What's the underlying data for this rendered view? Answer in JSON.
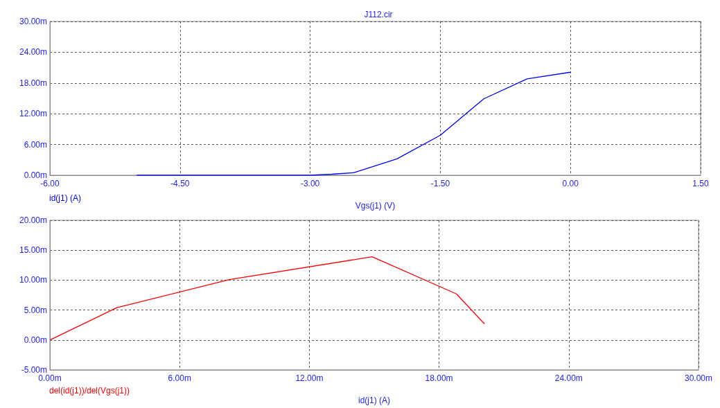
{
  "chart_data": [
    {
      "type": "line",
      "title": "J112.cir",
      "xlabel": "Vgs(j1) (V)",
      "x": [
        -5,
        -3,
        -2.75,
        -2.5,
        -2,
        -1.5,
        -1,
        -0.5,
        0
      ],
      "series": [
        {
          "name": "id(j1) (A)",
          "color": "#0000ff",
          "values": [
            0,
            0,
            0.2,
            0.5,
            3.2,
            7.8,
            14.9,
            18.8,
            20.1
          ]
        }
      ],
      "xlim": [
        -6,
        1.5
      ],
      "xticks": [
        {
          "value": -6,
          "label": "-6.00"
        },
        {
          "value": -4.5,
          "label": "-4.50"
        },
        {
          "value": -3,
          "label": "-3.00"
        },
        {
          "value": -1.5,
          "label": "-1.50"
        },
        {
          "value": 0,
          "label": "0.00"
        },
        {
          "value": 1.5,
          "label": "1.50"
        }
      ],
      "ylim": [
        0,
        30
      ],
      "yticks": [
        {
          "value": 0,
          "label": "0.00m"
        },
        {
          "value": 6,
          "label": "6.00m"
        },
        {
          "value": 12,
          "label": "12.00m"
        },
        {
          "value": 18,
          "label": "18.00m"
        },
        {
          "value": 24,
          "label": "24.00m"
        },
        {
          "value": 30,
          "label": "30.00m"
        }
      ],
      "grid": true,
      "legend": "bottom left",
      "marker": "none",
      "line_style": "solid"
    },
    {
      "type": "line",
      "xlabel": "id(j1) (A)",
      "x": [
        0,
        3.1,
        8.3,
        14.9,
        18.8,
        20.1
      ],
      "series": [
        {
          "name": "del(id(j1))/del(Vgs(j1))",
          "color": "#ff0000",
          "values": [
            0,
            5.4,
            10.1,
            13.9,
            7.7,
            2.7
          ]
        }
      ],
      "xlim": [
        0,
        30
      ],
      "xticks": [
        {
          "value": 0,
          "label": "0.00m"
        },
        {
          "value": 6,
          "label": "6.00m"
        },
        {
          "value": 12,
          "label": "12.00m"
        },
        {
          "value": 18,
          "label": "18.00m"
        },
        {
          "value": 24,
          "label": "24.00m"
        },
        {
          "value": 30,
          "label": "30.00m"
        }
      ],
      "ylim": [
        -5,
        20
      ],
      "yticks": [
        {
          "value": -5,
          "label": "-5.00m"
        },
        {
          "value": 0,
          "label": "0.00m"
        },
        {
          "value": 5,
          "label": "5.00m"
        },
        {
          "value": 10,
          "label": "10.00m"
        },
        {
          "value": 15,
          "label": "15.00m"
        },
        {
          "value": 20,
          "label": "20.00m"
        }
      ],
      "grid": true,
      "legend": "bottom left",
      "marker": "none",
      "line_style": "solid"
    }
  ]
}
